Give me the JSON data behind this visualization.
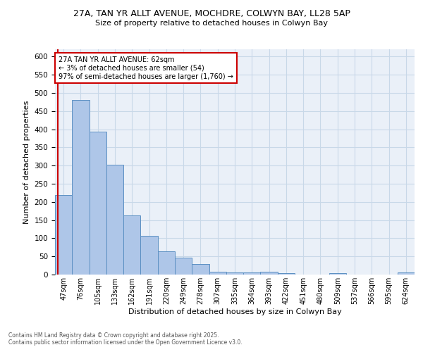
{
  "title_line1": "27A, TAN YR ALLT AVENUE, MOCHDRE, COLWYN BAY, LL28 5AP",
  "title_line2": "Size of property relative to detached houses in Colwyn Bay",
  "xlabel": "Distribution of detached houses by size in Colwyn Bay",
  "ylabel": "Number of detached properties",
  "categories": [
    "47sqm",
    "76sqm",
    "105sqm",
    "133sqm",
    "162sqm",
    "191sqm",
    "220sqm",
    "249sqm",
    "278sqm",
    "307sqm",
    "335sqm",
    "364sqm",
    "393sqm",
    "422sqm",
    "451sqm",
    "480sqm",
    "509sqm",
    "537sqm",
    "566sqm",
    "595sqm",
    "624sqm"
  ],
  "values": [
    218,
    480,
    393,
    302,
    163,
    107,
    63,
    46,
    30,
    8,
    6,
    6,
    8,
    4,
    0,
    0,
    4,
    0,
    0,
    0,
    5
  ],
  "bar_color": "#aec6e8",
  "bar_edge_color": "#5a8fc2",
  "annotation_text": "27A TAN YR ALLT AVENUE: 62sqm\n← 3% of detached houses are smaller (54)\n97% of semi-detached houses are larger (1,760) →",
  "annotation_box_color": "#ffffff",
  "annotation_box_edge_color": "#cc0000",
  "vline_color": "#cc0000",
  "vline_x_index": 0,
  "ylim": [
    0,
    620
  ],
  "yticks": [
    0,
    50,
    100,
    150,
    200,
    250,
    300,
    350,
    400,
    450,
    500,
    550,
    600
  ],
  "grid_color": "#c8d8e8",
  "bg_color": "#eaf0f8",
  "footer_line1": "Contains HM Land Registry data © Crown copyright and database right 2025.",
  "footer_line2": "Contains public sector information licensed under the Open Government Licence v3.0."
}
